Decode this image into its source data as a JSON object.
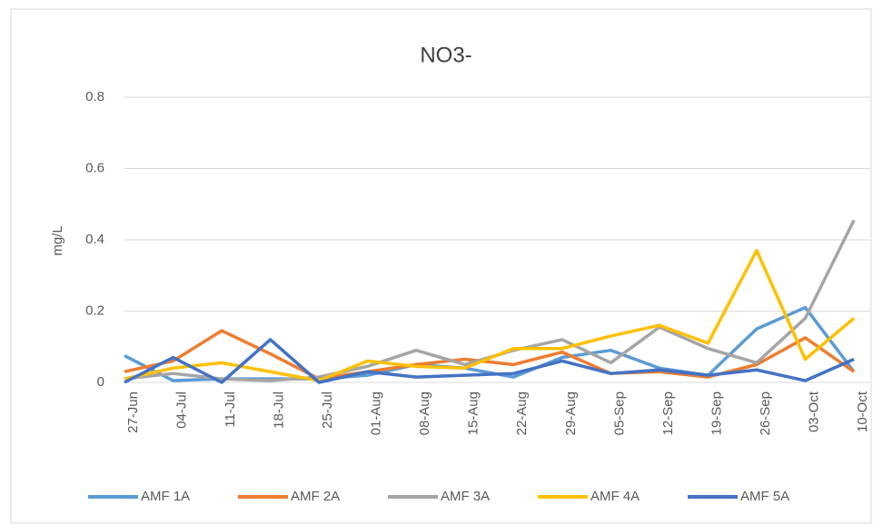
{
  "chart_data": {
    "type": "line",
    "title": "NO3-",
    "y_label": "mg/L",
    "categories": [
      "27-Jun",
      "04-Jul",
      "11-Jul",
      "18-Jul",
      "25-Jul",
      "01-Aug",
      "08-Aug",
      "15-Aug",
      "22-Aug",
      "29-Aug",
      "05-Sep",
      "12-Sep",
      "19-Sep",
      "26-Sep",
      "03-Oct",
      "10-Oct"
    ],
    "series": [
      {
        "name": "AMF 1A",
        "color": "#5b9bd5",
        "values": [
          0.075,
          0.005,
          0.01,
          0.01,
          0.01,
          0.02,
          0.05,
          0.04,
          0.015,
          0.07,
          0.09,
          0.04,
          0.02,
          0.15,
          0.21,
          0.03
        ]
      },
      {
        "name": "AMF 2A",
        "color": "#ed7d31",
        "values": [
          0.03,
          0.06,
          0.145,
          0.08,
          0.01,
          0.03,
          0.05,
          0.065,
          0.05,
          0.085,
          0.025,
          0.03,
          0.015,
          0.05,
          0.125,
          0.03
        ]
      },
      {
        "name": "AMF 3A",
        "color": "#a5a5a5",
        "values": [
          0.01,
          0.025,
          0.01,
          0.005,
          0.015,
          0.045,
          0.09,
          0.05,
          0.09,
          0.12,
          0.055,
          0.155,
          0.095,
          0.055,
          0.18,
          0.455
        ]
      },
      {
        "name": "AMF 4A",
        "color": "#ffc000",
        "values": [
          0.01,
          0.04,
          0.055,
          0.03,
          0.005,
          0.06,
          0.045,
          0.04,
          0.095,
          0.095,
          0.13,
          0.16,
          0.11,
          0.37,
          0.065,
          0.18
        ]
      },
      {
        "name": "AMF 5A",
        "color": "#4472c4",
        "values": [
          0,
          0.07,
          0,
          0.12,
          0,
          0.03,
          0.015,
          0.02,
          0.025,
          0.06,
          0.025,
          0.035,
          0.02,
          0.035,
          0.005,
          0.065
        ]
      }
    ],
    "ylim": [
      0,
      0.8
    ],
    "yticks": [
      0,
      0.2,
      0.4,
      0.6,
      0.8
    ],
    "grid": true,
    "legend": "bottom"
  }
}
